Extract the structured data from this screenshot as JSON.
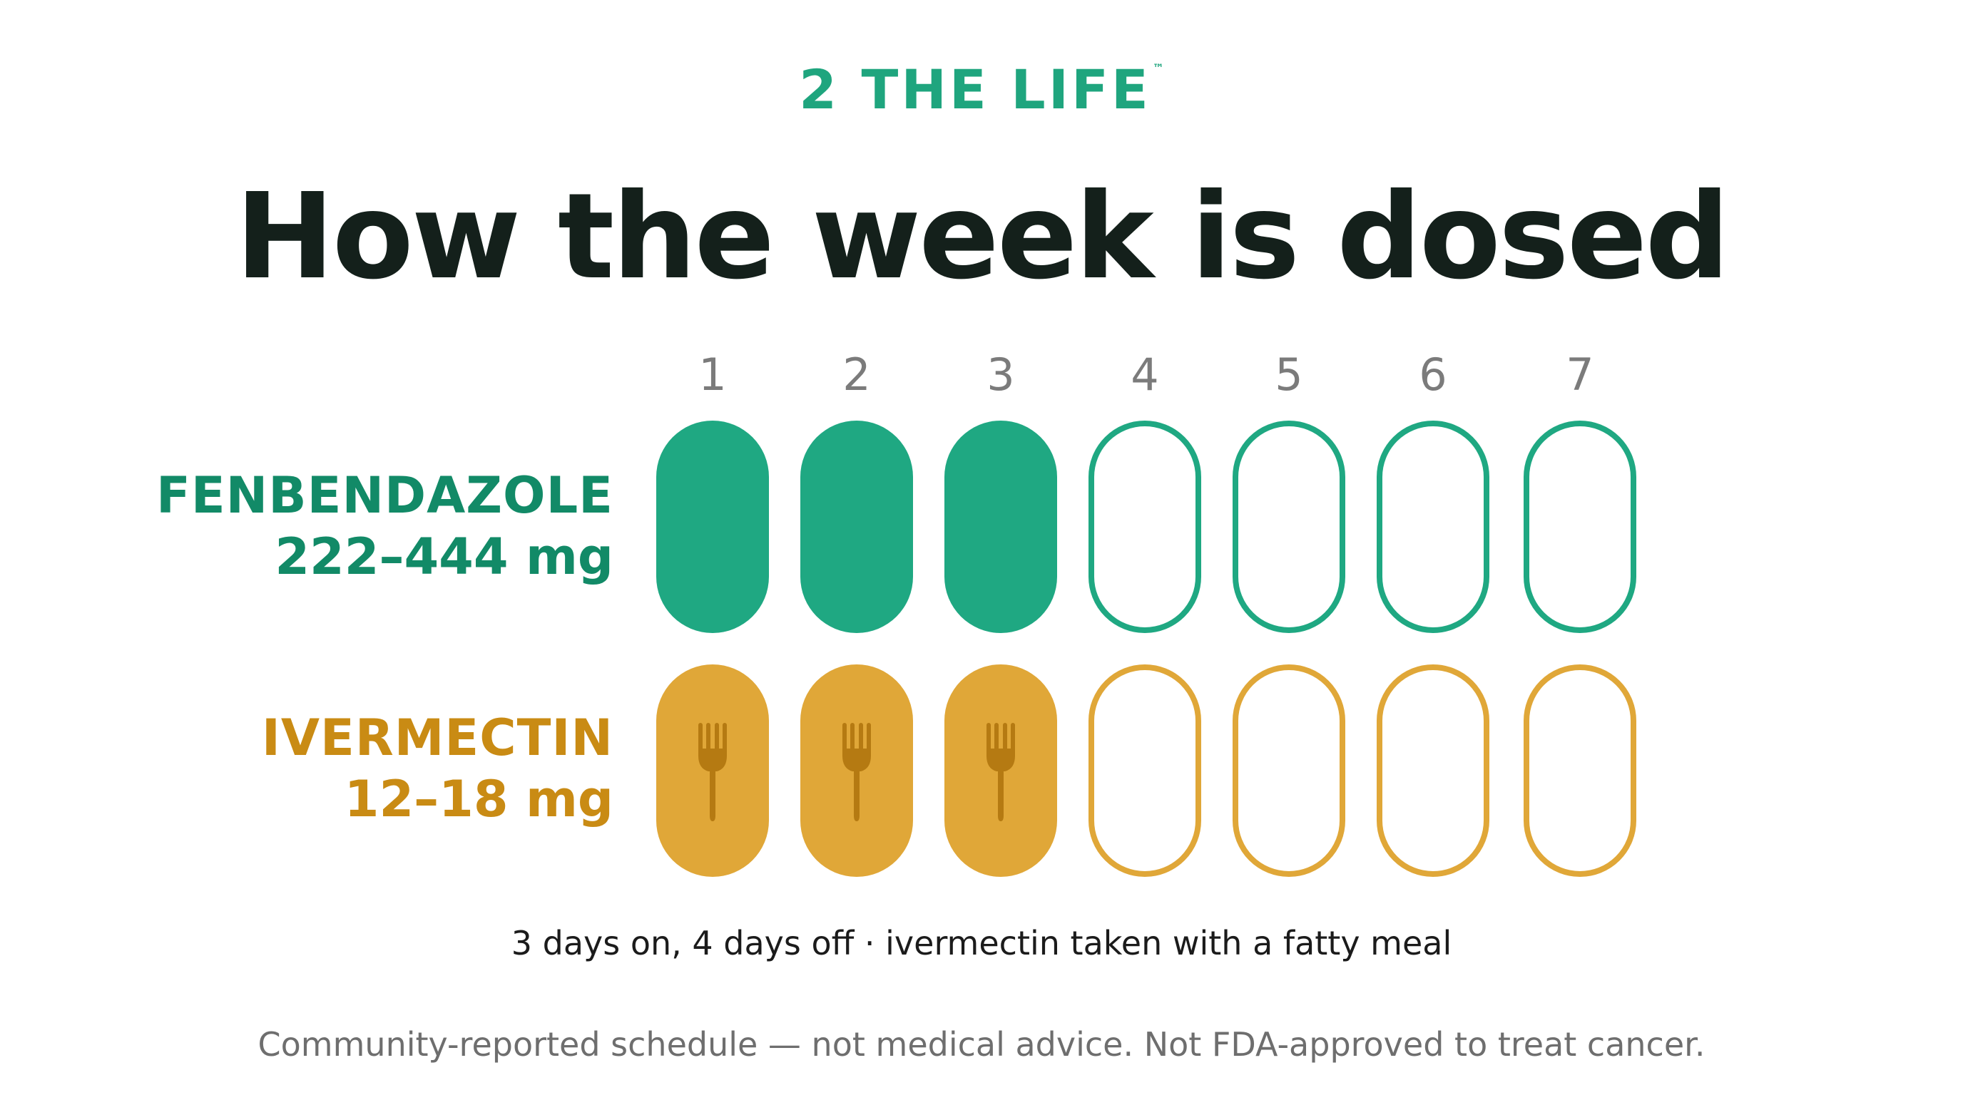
{
  "logo": {
    "text": "2 THE LIFE",
    "tm": "™"
  },
  "headline": "How the week is dosed",
  "days": [
    "1",
    "2",
    "3",
    "4",
    "5",
    "6",
    "7"
  ],
  "drugs": [
    {
      "name": "FENBENDAZOLE",
      "dose": "222–444 mg",
      "color": "#1fa882",
      "label_color": "#128a67",
      "on_days": [
        1,
        2,
        3
      ],
      "on_icon": null
    },
    {
      "name": "IVERMECTIN",
      "dose": "12–18 mg",
      "color": "#e0a738",
      "label_color": "#c98b14",
      "on_days": [
        1,
        2,
        3
      ],
      "on_icon": "fork-icon"
    }
  ],
  "summary": "3 days on, 4 days off · ivermectin taken with a fatty meal",
  "disclaimer": "Community-reported schedule — not medical advice. Not FDA-approved to treat cancer.",
  "colors": {
    "green": "#1fa882",
    "gold": "#e0a738",
    "fork": "#b57a12",
    "headline": "#14201b",
    "day_label": "#7b7b7b"
  }
}
